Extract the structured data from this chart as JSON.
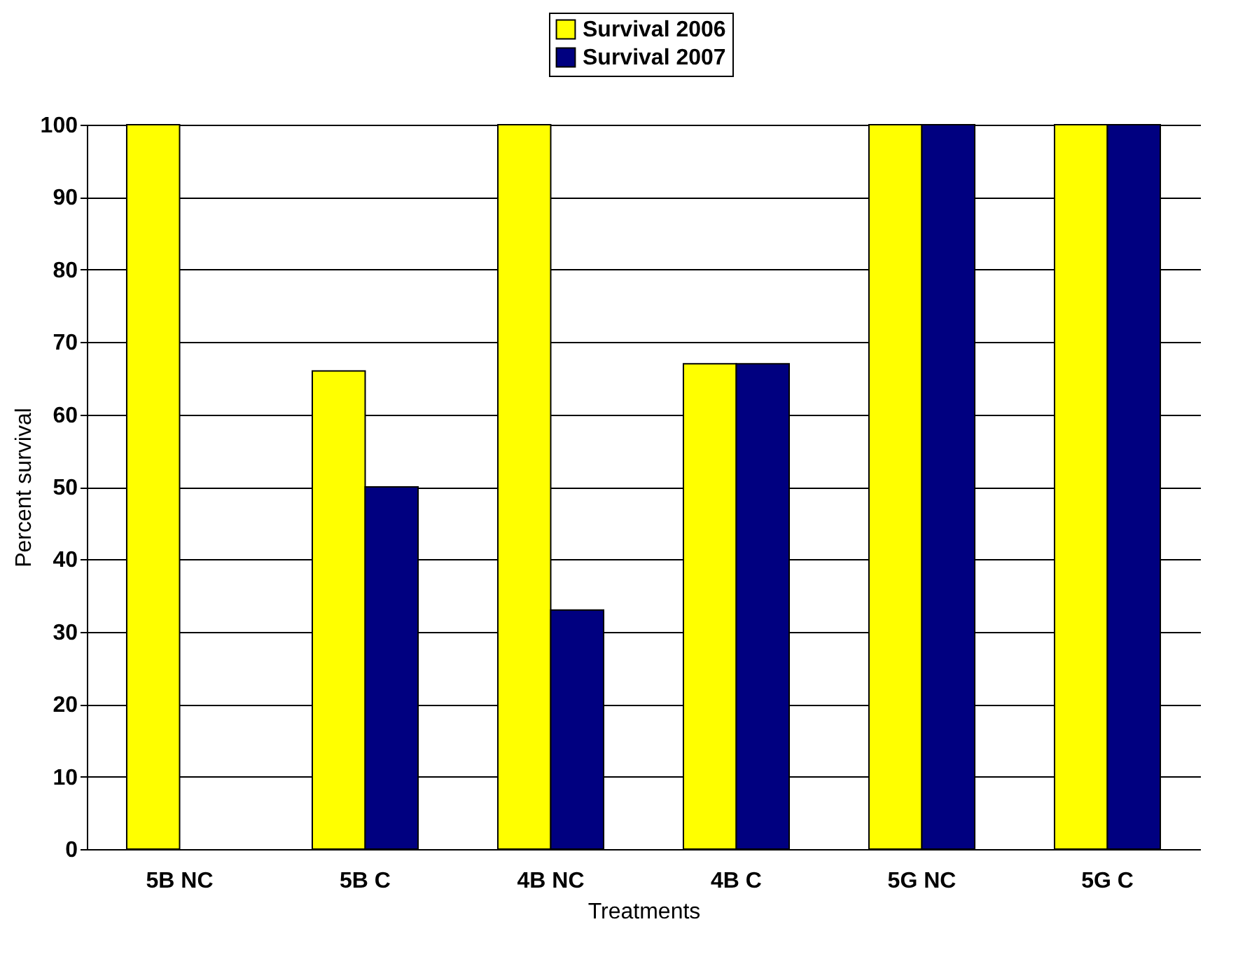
{
  "chart_data": {
    "type": "bar",
    "xlabel": "Treatments",
    "ylabel": "Percent survival",
    "categories": [
      "5B NC",
      "5B C",
      "4B NC",
      "4B C",
      "5G NC",
      "5G C"
    ],
    "series": [
      {
        "name": "Survival 2006",
        "color": "#ffff00",
        "values": [
          100,
          66,
          100,
          67,
          100,
          100
        ]
      },
      {
        "name": "Survival 2007",
        "color": "#000080",
        "values": [
          null,
          50,
          33,
          67,
          100,
          100
        ]
      }
    ],
    "ylim": [
      0,
      100
    ],
    "yticks": [
      0,
      10,
      20,
      30,
      40,
      50,
      60,
      70,
      80,
      90,
      100
    ],
    "grid": "y",
    "legend": "top"
  }
}
